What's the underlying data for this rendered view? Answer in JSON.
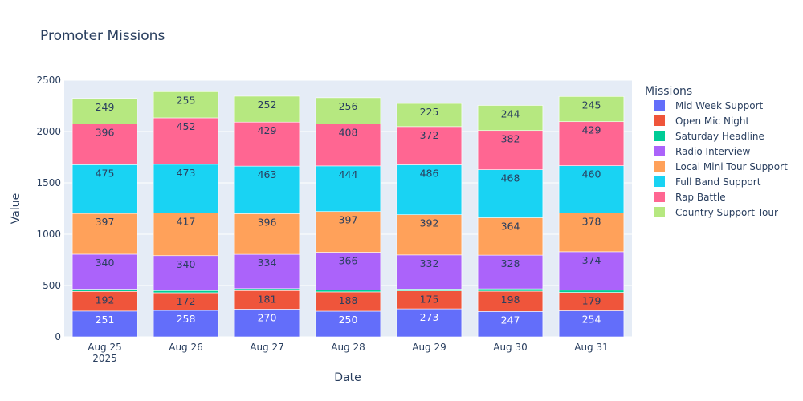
{
  "chart_data": {
    "type": "bar",
    "stacked": true,
    "title": "Promoter Missions",
    "xlabel": "Date",
    "ylabel": "Value",
    "ylim": [
      0,
      2500
    ],
    "yticks": [
      0,
      500,
      1000,
      1500,
      2000,
      2500
    ],
    "categories": [
      "Aug 25",
      "Aug 26",
      "Aug 27",
      "Aug 28",
      "Aug 29",
      "Aug 30",
      "Aug 31"
    ],
    "year_label": "2025",
    "legend_title": "Missions",
    "legend_position": "right",
    "grid": true,
    "series": [
      {
        "name": "Mid Week Support",
        "color": "#636efa",
        "label_color": "#ffffff",
        "values": [
          251,
          258,
          270,
          250,
          273,
          247,
          254
        ]
      },
      {
        "name": "Open Mic Night",
        "color": "#ef553b",
        "label_color": "#2a3f5f",
        "values": [
          192,
          172,
          181,
          188,
          175,
          198,
          179
        ]
      },
      {
        "name": "Saturday Headline",
        "color": "#00cc96",
        "label_color": "#2a3f5f",
        "values": [
          22,
          21,
          19,
          20,
          18,
          23,
          22
        ],
        "labels_hidden": true
      },
      {
        "name": "Radio Interview",
        "color": "#ab63fa",
        "label_color": "#2a3f5f",
        "values": [
          340,
          340,
          334,
          366,
          332,
          328,
          374
        ]
      },
      {
        "name": "Local Mini Tour Support",
        "color": "#ffa15a",
        "label_color": "#2a3f5f",
        "values": [
          397,
          417,
          396,
          397,
          392,
          364,
          378
        ]
      },
      {
        "name": "Full Band Support",
        "color": "#19d3f3",
        "label_color": "#2a3f5f",
        "values": [
          475,
          473,
          463,
          444,
          486,
          468,
          460
        ]
      },
      {
        "name": "Rap Battle",
        "color": "#ff6692",
        "label_color": "#2a3f5f",
        "values": [
          396,
          452,
          429,
          408,
          372,
          382,
          429
        ]
      },
      {
        "name": "Country Support Tour",
        "color": "#b6e880",
        "label_color": "#2a3f5f",
        "values": [
          249,
          255,
          252,
          256,
          225,
          244,
          245
        ]
      }
    ]
  }
}
